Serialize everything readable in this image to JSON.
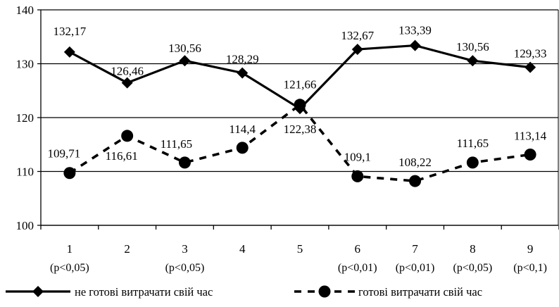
{
  "chart_data": {
    "type": "line",
    "categories": [
      "1",
      "2",
      "3",
      "4",
      "5",
      "6",
      "7",
      "8",
      "9"
    ],
    "significance": [
      "(p<0,05)",
      "",
      "(p<0,05)",
      "",
      "",
      "(p<0,01)",
      "(p<0,01)",
      "(p<0,05)",
      "(p<0,1)"
    ],
    "ylim": [
      100,
      140
    ],
    "yticks": [
      100,
      110,
      120,
      130,
      140
    ],
    "grid": true,
    "legend_position": "bottom",
    "series": [
      {
        "name": "не готові витрачати свій час",
        "style": "solid",
        "marker": "diamond",
        "color": "#000000",
        "values": [
          132.17,
          126.46,
          130.56,
          128.29,
          121.66,
          132.67,
          133.39,
          130.56,
          129.33
        ],
        "labels": [
          "132,17",
          "126,46",
          "130,56",
          "128,29",
          "121,66",
          "132,67",
          "133,39",
          "130,56",
          "129,33"
        ]
      },
      {
        "name": "готові витрачати свій час",
        "style": "dashed",
        "marker": "circle",
        "color": "#000000",
        "values": [
          109.71,
          116.61,
          111.65,
          114.4,
          122.38,
          109.1,
          108.22,
          111.65,
          113.14
        ],
        "labels": [
          "109,71",
          "116,61",
          "111,65",
          "114,4",
          "122,38",
          "109,1",
          "108,22",
          "111,65",
          "113,14"
        ]
      }
    ]
  }
}
